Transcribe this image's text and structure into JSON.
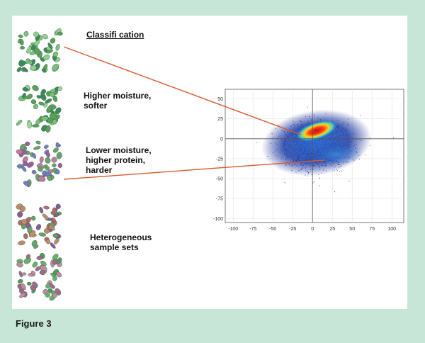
{
  "figure": {
    "caption": "Figure 3",
    "background_color": "#c8e6d8",
    "connector_color": "#d9582a"
  },
  "labels": {
    "classification": "Classifi cation",
    "higher_moisture": "Higher moisture,\nsofter",
    "lower_moisture": "Lower moisture,\nhigher protein,\nharder",
    "heterogeneous": "Heterogeneous\nsample sets"
  },
  "samples": [
    {
      "name": "sample-image-1",
      "palette": [
        "#5aa05a",
        "#7cc07c",
        "#3e8a5a",
        "#8fd08f"
      ]
    },
    {
      "name": "sample-image-2",
      "palette": [
        "#5aa05a",
        "#7cc07c",
        "#3e8a5a",
        "#9ad49a"
      ]
    },
    {
      "name": "sample-image-3",
      "palette": [
        "#a05aa0",
        "#7a7ac8",
        "#6aa06a",
        "#c07aa0"
      ]
    },
    {
      "name": "sample-image-4",
      "palette": [
        "#b06a6a",
        "#6aa06a",
        "#8a5a9a",
        "#c08a6a"
      ]
    },
    {
      "name": "sample-image-5",
      "palette": [
        "#6ab06a",
        "#a06a8a",
        "#4e9a5e",
        "#c08aa0"
      ]
    }
  ],
  "plot": {
    "x_ticks": [
      "-100",
      "-75",
      "-50",
      "-25",
      "0",
      "25",
      "50",
      "75",
      "100"
    ],
    "y_ticks": [
      "50",
      "25",
      "0",
      "-25",
      "-50",
      "-75",
      "-100"
    ],
    "xlim": [
      -110,
      115
    ],
    "ylim": [
      -105,
      62
    ]
  }
}
